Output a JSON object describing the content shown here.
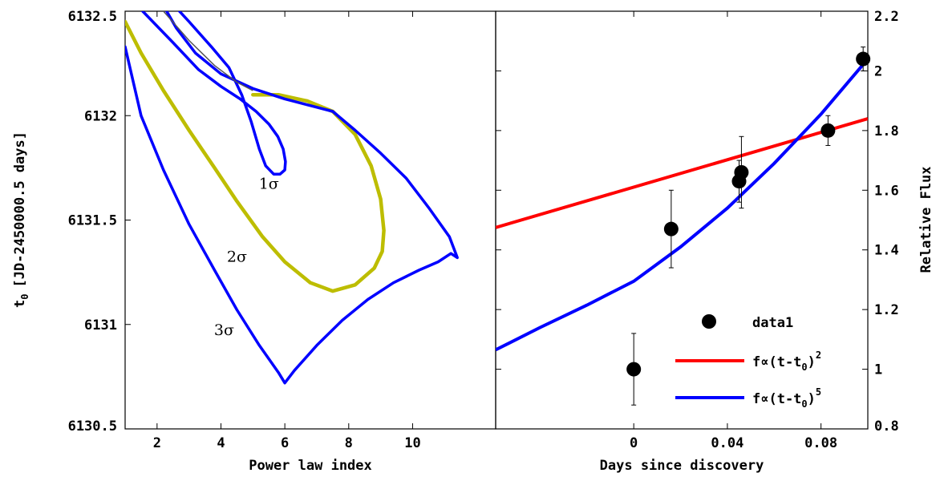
{
  "chart_data": [
    {
      "type": "contour",
      "title": "",
      "xlabel": "Power law index",
      "ylabel": "t",
      "ylabel_subscript": "0",
      "ylabel_suffix": "[JD-2450000.5 days]",
      "xlim": [
        1,
        12.6
      ],
      "ylim": [
        6130.5,
        6132.5
      ],
      "x_ticks": [
        2,
        4,
        6,
        8,
        10
      ],
      "y_ticks": [
        6130.5,
        6131,
        6131.5,
        6132,
        6132.5
      ],
      "y_tick_labels": [
        "6130.5",
        "6131",
        "6131.5",
        "6132",
        "6132.5"
      ],
      "grid": false,
      "colors": {
        "1sigma": "#0000ff",
        "2sigma": "#bdbd00",
        "3sigma": "#0000ff",
        "best_fit_ridge": "#555555"
      },
      "contours": [
        {
          "label": "1σ",
          "color": "#0000ff",
          "points": [
            [
              1.55,
              6132.5
            ],
            [
              2.5,
              6132.35
            ],
            [
              3.3,
              6132.22
            ],
            [
              4.0,
              6132.14
            ],
            [
              4.6,
              6132.08
            ],
            [
              5.1,
              6132.02
            ],
            [
              5.5,
              6131.96
            ],
            [
              5.78,
              6131.9
            ],
            [
              5.95,
              6131.84
            ],
            [
              6.02,
              6131.78
            ],
            [
              6.0,
              6131.74
            ],
            [
              5.85,
              6131.72
            ],
            [
              5.65,
              6131.72
            ],
            [
              5.4,
              6131.76
            ],
            [
              5.2,
              6131.84
            ],
            [
              4.95,
              6131.97
            ],
            [
              4.65,
              6132.1
            ],
            [
              4.25,
              6132.23
            ],
            [
              3.7,
              6132.33
            ],
            [
              3.0,
              6132.45
            ],
            [
              2.7,
              6132.5
            ]
          ]
        },
        {
          "label": "2σ",
          "color": "#bdbd00",
          "points": [
            [
              1.0,
              6132.45
            ],
            [
              1.5,
              6132.3
            ],
            [
              2.2,
              6132.12
            ],
            [
              3.0,
              6131.93
            ],
            [
              3.8,
              6131.75
            ],
            [
              4.5,
              6131.59
            ],
            [
              5.3,
              6131.42
            ],
            [
              6.0,
              6131.3
            ],
            [
              6.8,
              6131.2
            ],
            [
              7.5,
              6131.16
            ],
            [
              8.2,
              6131.19
            ],
            [
              8.8,
              6131.27
            ],
            [
              9.05,
              6131.35
            ],
            [
              9.1,
              6131.45
            ],
            [
              9.0,
              6131.6
            ],
            [
              8.7,
              6131.76
            ],
            [
              8.2,
              6131.91
            ],
            [
              7.5,
              6132.02
            ],
            [
              6.7,
              6132.07
            ],
            [
              5.8,
              6132.1
            ],
            [
              5.0,
              6132.1
            ]
          ]
        },
        {
          "label": "3σ",
          "color": "#0000ff",
          "points": [
            [
              1.0,
              6132.33
            ],
            [
              1.5,
              6132.0
            ],
            [
              2.2,
              6131.74
            ],
            [
              3.0,
              6131.48
            ],
            [
              3.8,
              6131.26
            ],
            [
              4.5,
              6131.07
            ],
            [
              5.2,
              6130.9
            ],
            [
              5.8,
              6130.77
            ],
            [
              6.0,
              6130.72
            ],
            [
              6.3,
              6130.78
            ],
            [
              7.0,
              6130.9
            ],
            [
              7.8,
              6131.02
            ],
            [
              8.6,
              6131.12
            ],
            [
              9.4,
              6131.2
            ],
            [
              10.2,
              6131.26
            ],
            [
              10.8,
              6131.3
            ],
            [
              11.2,
              6131.34
            ],
            [
              11.4,
              6131.32
            ],
            [
              11.15,
              6131.42
            ],
            [
              10.5,
              6131.56
            ],
            [
              9.8,
              6131.7
            ],
            [
              9.0,
              6131.82
            ],
            [
              8.2,
              6131.93
            ],
            [
              7.5,
              6132.02
            ],
            [
              7.0,
              6132.04
            ],
            [
              6.0,
              6132.08
            ],
            [
              5.0,
              6132.13
            ],
            [
              4.0,
              6132.2
            ],
            [
              3.2,
              6132.3
            ],
            [
              2.6,
              6132.42
            ],
            [
              2.3,
              6132.5
            ]
          ]
        }
      ],
      "ridge": [
        [
          2.2,
          6132.5
        ],
        [
          3.0,
          6132.36
        ],
        [
          3.8,
          6132.24
        ],
        [
          4.5,
          6132.16
        ],
        [
          5.0,
          6132.12
        ]
      ],
      "annotations": [
        {
          "text": "1σ",
          "x": 5.5,
          "y": 6131.65
        },
        {
          "text": "2σ",
          "x": 4.5,
          "y": 6131.3
        },
        {
          "text": "3σ",
          "x": 4.1,
          "y": 6130.95
        }
      ]
    },
    {
      "type": "scatter+line",
      "title": "",
      "xlabel": "Days since discovery",
      "ylabel": "Relative Flux",
      "xlim": [
        -0.059,
        0.1
      ],
      "ylim": [
        0.8,
        2.2
      ],
      "x_ticks": [
        0,
        0.04,
        0.08
      ],
      "x_tick_labels": [
        "0",
        "0.04",
        "0.08"
      ],
      "y_ticks": [
        0.8,
        1,
        1.2,
        1.4,
        1.6,
        1.8,
        2,
        2.2
      ],
      "y_tick_labels": [
        "0.8",
        "1",
        "1.2",
        "1.4",
        "1.6",
        "1.8",
        "2",
        "2.2"
      ],
      "y_axis_side": "right",
      "grid": false,
      "legend_placement": "bottom-right",
      "data": {
        "name": "data1",
        "x": [
          0.0,
          0.016,
          0.045,
          0.046,
          0.083,
          0.098
        ],
        "y": [
          1.0,
          1.47,
          1.63,
          1.66,
          1.8,
          2.04
        ],
        "err": [
          0.12,
          0.13,
          0.07,
          0.12,
          0.05,
          0.04
        ]
      },
      "series": [
        {
          "name": "f∝(t−t0)^2",
          "legend_main": "f∝(t-t",
          "legend_sub": "0",
          "legend_close": ")",
          "legend_sup": "2",
          "color": "#ff0000",
          "x": [
            -0.059,
            0.1
          ],
          "y": [
            1.475,
            1.84
          ]
        },
        {
          "name": "f∝(t−t0)^5",
          "legend_main": "f∝(t-t",
          "legend_sub": "0",
          "legend_close": ")",
          "legend_sup": "5",
          "color": "#0000ff",
          "x": [
            -0.059,
            -0.04,
            -0.02,
            0.0,
            0.02,
            0.04,
            0.06,
            0.08,
            0.1
          ],
          "y": [
            1.065,
            1.14,
            1.215,
            1.295,
            1.41,
            1.54,
            1.69,
            1.855,
            2.04
          ]
        }
      ]
    }
  ]
}
